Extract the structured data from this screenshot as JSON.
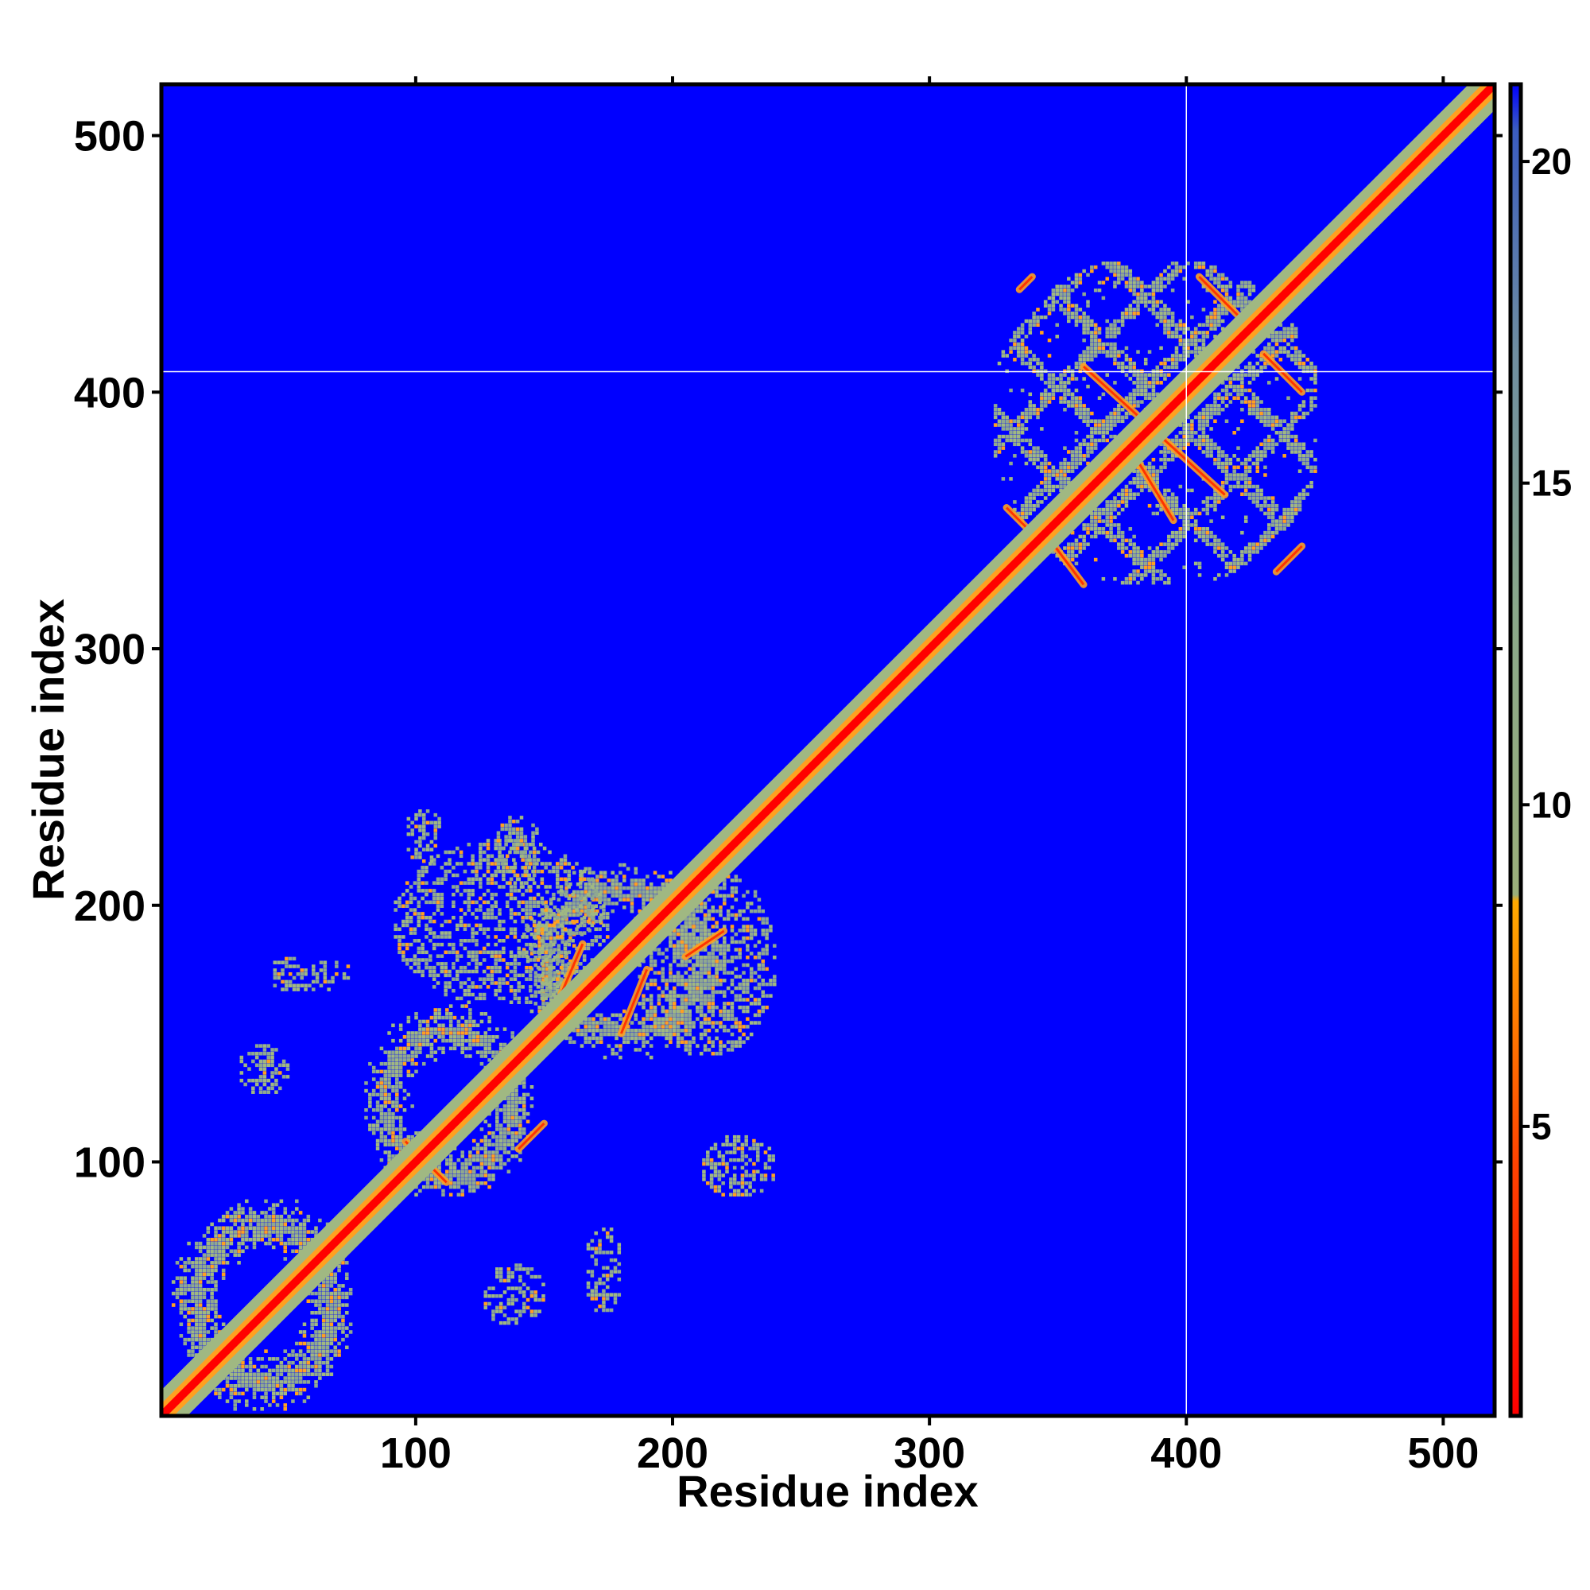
{
  "chart_data": {
    "type": "heatmap",
    "title": "",
    "xlabel": "Residue index",
    "ylabel": "Residue index",
    "xlim": [
      1,
      520
    ],
    "ylim": [
      1,
      520
    ],
    "x_ticks": [
      100,
      200,
      300,
      400,
      500
    ],
    "y_ticks": [
      100,
      200,
      300,
      400,
      500
    ],
    "x_tick_labels": [
      "100",
      "200",
      "300",
      "400",
      "500"
    ],
    "y_tick_labels": [
      "100",
      "200",
      "300",
      "400",
      "500"
    ],
    "background_color": "#0000ff",
    "marker_lines": {
      "x": 400,
      "y": 408,
      "color": "#ffffff"
    },
    "colorbar": {
      "range": [
        0.5,
        21.2
      ],
      "ticks": [
        5,
        10,
        15,
        20
      ],
      "tick_labels": [
        "5",
        "10",
        "15",
        "20"
      ],
      "stops": [
        {
          "value": 0.5,
          "color": "#ff0000"
        },
        {
          "value": 4.5,
          "color": "#ff4400"
        },
        {
          "value": 8.5,
          "color": "#ffaa00"
        },
        {
          "value": 8.6,
          "color": "#9aaf7a"
        },
        {
          "value": 13.0,
          "color": "#8aa88a"
        },
        {
          "value": 17.0,
          "color": "#6f8ea0"
        },
        {
          "value": 20.5,
          "color": "#3a5cc0"
        },
        {
          "value": 21.2,
          "color": "#0000ff"
        }
      ]
    },
    "diagonal": {
      "from": 1,
      "to": 520,
      "core_color": "#ff0000",
      "edge_color": "#ffa020",
      "halo_color": "#a0b882"
    },
    "contact_regions": [
      {
        "x": [
          5,
          75
        ],
        "y": [
          3,
          85
        ],
        "pattern": "ring"
      },
      {
        "x": [
          80,
          145
        ],
        "y": [
          85,
          160
        ],
        "pattern": "ring"
      },
      {
        "x": [
          140,
          220
        ],
        "y": [
          140,
          215
        ],
        "pattern": "ring"
      },
      {
        "x": [
          90,
          175
        ],
        "y": [
          160,
          225
        ],
        "pattern": "speckle"
      },
      {
        "x": [
          95,
          110
        ],
        "y": [
          215,
          238
        ],
        "pattern": "speckle"
      },
      {
        "x": [
          130,
          150
        ],
        "y": [
          205,
          235
        ],
        "pattern": "speckle"
      },
      {
        "x": [
          210,
          240
        ],
        "y": [
          85,
          110
        ],
        "pattern": "speckle"
      },
      {
        "x": [
          125,
          150
        ],
        "y": [
          35,
          60
        ],
        "pattern": "speckle"
      },
      {
        "x": [
          165,
          180
        ],
        "y": [
          40,
          75
        ],
        "pattern": "speckle"
      },
      {
        "x": [
          30,
          50
        ],
        "y": [
          125,
          145
        ],
        "pattern": "speckle"
      },
      {
        "x": [
          40,
          75
        ],
        "y": [
          165,
          180
        ],
        "pattern": "speckle"
      },
      {
        "x": [
          185,
          240
        ],
        "y": [
          140,
          215
        ],
        "pattern": "speckle"
      },
      {
        "x": [
          325,
          450
        ],
        "y": [
          325,
          450
        ],
        "pattern": "lattice"
      }
    ],
    "off_diagonal_bands": [
      {
        "x": [
          96,
          112
        ],
        "y": [
          108,
          92
        ]
      },
      {
        "x": [
          150,
          165
        ],
        "y": [
          150,
          185
        ]
      },
      {
        "x": [
          180,
          190
        ],
        "y": [
          150,
          175
        ]
      },
      {
        "x": [
          205,
          220
        ],
        "y": [
          180,
          190
        ]
      },
      {
        "x": [
          140,
          150
        ],
        "y": [
          105,
          115
        ]
      },
      {
        "x": [
          330,
          345
        ],
        "y": [
          355,
          340
        ]
      },
      {
        "x": [
          345,
          360
        ],
        "y": [
          345,
          325
        ]
      },
      {
        "x": [
          360,
          415
        ],
        "y": [
          410,
          360
        ]
      },
      {
        "x": [
          380,
          395
        ],
        "y": [
          375,
          350
        ]
      },
      {
        "x": [
          405,
          420
        ],
        "y": [
          445,
          430
        ]
      },
      {
        "x": [
          430,
          445
        ],
        "y": [
          415,
          400
        ]
      },
      {
        "x": [
          335,
          340
        ],
        "y": [
          440,
          445
        ]
      },
      {
        "x": [
          435,
          445
        ],
        "y": [
          330,
          340
        ]
      }
    ]
  }
}
